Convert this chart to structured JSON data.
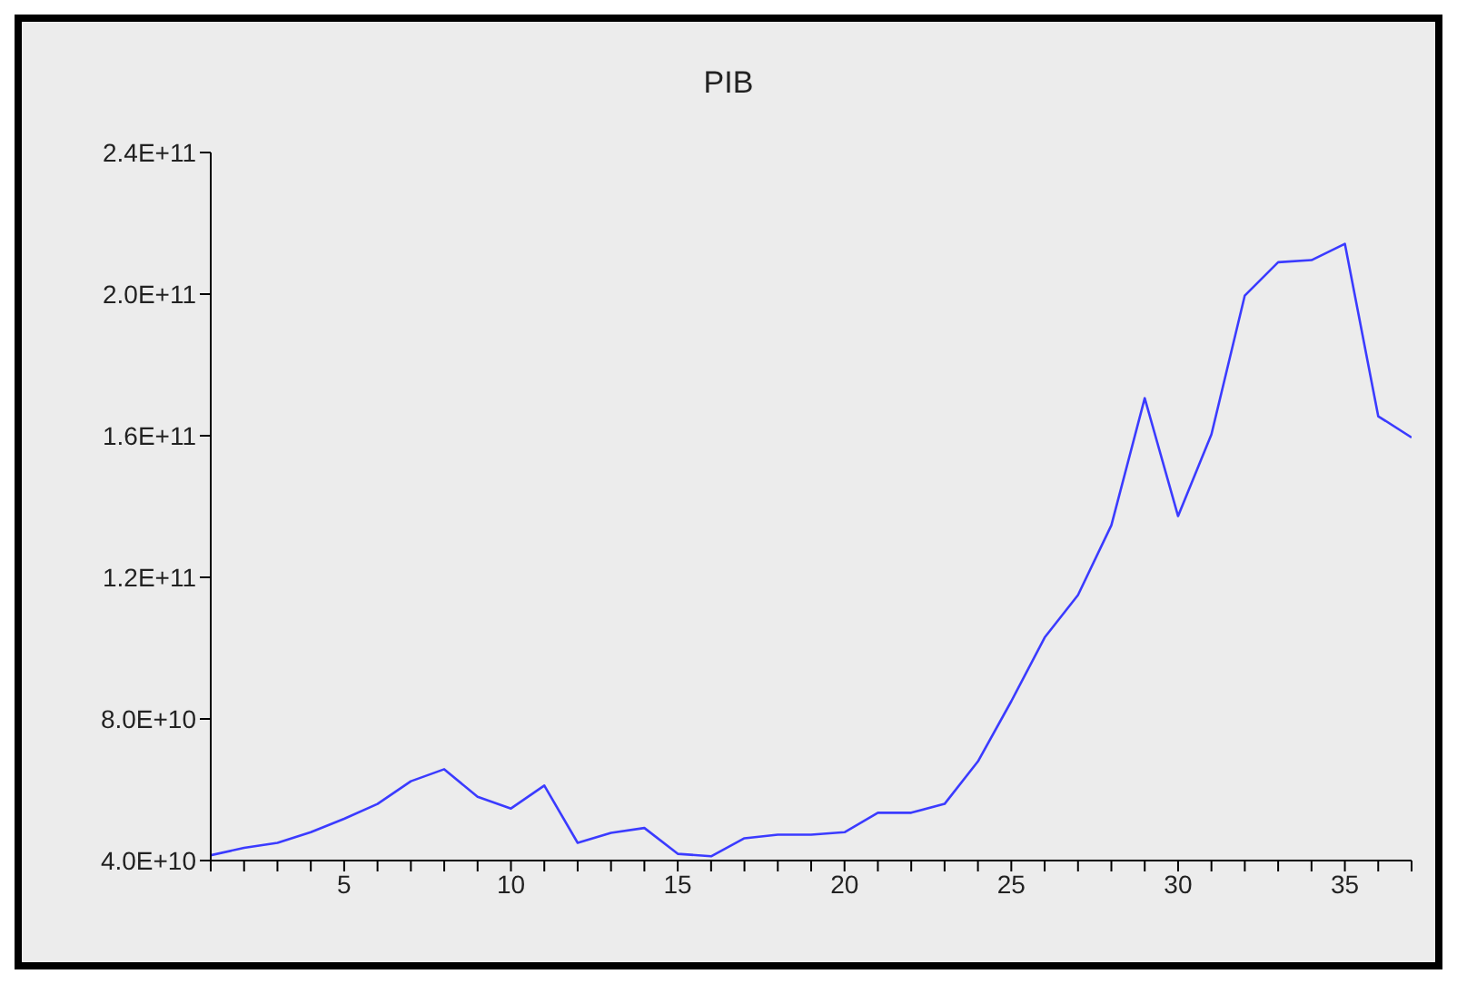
{
  "chart_data": {
    "type": "line",
    "title": "PIB",
    "x": [
      1,
      2,
      3,
      4,
      5,
      6,
      7,
      8,
      9,
      10,
      11,
      12,
      13,
      14,
      15,
      16,
      17,
      18,
      19,
      20,
      21,
      22,
      23,
      24,
      25,
      26,
      27,
      28,
      29,
      30,
      31,
      32,
      33,
      34,
      35,
      36,
      37
    ],
    "series": [
      {
        "color": "#3b3bff",
        "values": [
          41500000000.0,
          43600000000.0,
          45000000000.0,
          48000000000.0,
          51800000000.0,
          56000000000.0,
          62400000000.0,
          65800000000.0,
          58000000000.0,
          54700000000.0,
          61200000000.0,
          45000000000.0,
          47800000000.0,
          49200000000.0,
          41900000000.0,
          41200000000.0,
          46300000000.0,
          47300000000.0,
          47300000000.0,
          48000000000.0,
          53500000000.0,
          53500000000.0,
          56000000000.0,
          68000000000.0,
          85000000000.0,
          103000000000.0,
          115000000000.0,
          134700000000.0,
          170600000000.0,
          137300000000.0,
          160400000000.0,
          199600000000.0,
          209000000000.0,
          209600000000.0,
          214200000000.0,
          165500000000.0,
          159500000000.0
        ]
      }
    ],
    "xlim": [
      1,
      37
    ],
    "xticks": [
      {
        "value": 1,
        "label": null
      },
      {
        "value": 2,
        "label": null
      },
      {
        "value": 3,
        "label": null
      },
      {
        "value": 4,
        "label": null
      },
      5,
      {
        "value": 6,
        "label": null
      },
      {
        "value": 7,
        "label": null
      },
      {
        "value": 8,
        "label": null
      },
      {
        "value": 9,
        "label": null
      },
      10,
      {
        "value": 11,
        "label": null
      },
      {
        "value": 12,
        "label": null
      },
      {
        "value": 13,
        "label": null
      },
      {
        "value": 14,
        "label": null
      },
      15,
      {
        "value": 16,
        "label": null
      },
      {
        "value": 17,
        "label": null
      },
      {
        "value": 18,
        "label": null
      },
      {
        "value": 19,
        "label": null
      },
      20,
      {
        "value": 21,
        "label": null
      },
      {
        "value": 22,
        "label": null
      },
      {
        "value": 23,
        "label": null
      },
      {
        "value": 24,
        "label": null
      },
      25,
      {
        "value": 26,
        "label": null
      },
      {
        "value": 27,
        "label": null
      },
      {
        "value": 28,
        "label": null
      },
      {
        "value": 29,
        "label": null
      },
      30,
      {
        "value": 31,
        "label": null
      },
      {
        "value": 32,
        "label": null
      },
      {
        "value": 33,
        "label": null
      },
      {
        "value": 34,
        "label": null
      },
      35,
      {
        "value": 36,
        "label": null
      },
      {
        "value": 37,
        "label": null
      }
    ],
    "ylim": [
      40000000000,
      240000000000
    ],
    "yticks": [
      {
        "value": 40000000000,
        "label": "4.0E+10"
      },
      {
        "value": 80000000000,
        "label": "8.0E+10"
      },
      {
        "value": 120000000000,
        "label": "1.2E+11"
      },
      {
        "value": 160000000000,
        "label": "1.6E+11"
      },
      {
        "value": 200000000000,
        "label": "2.0E+11"
      },
      {
        "value": 240000000000,
        "label": "2.4E+11"
      }
    ],
    "grid": false,
    "legend": false,
    "marker": "none",
    "line_style": "solid"
  }
}
